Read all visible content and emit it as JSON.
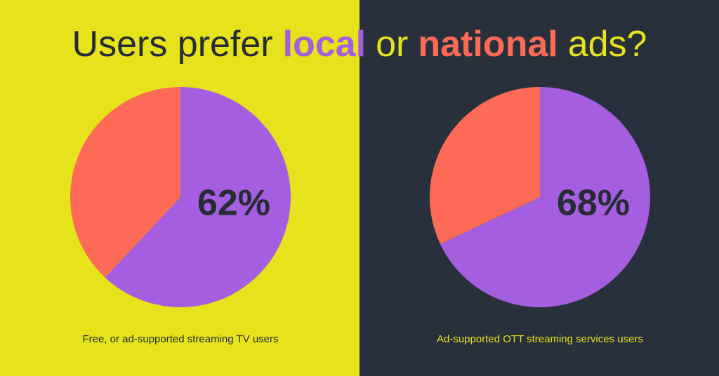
{
  "header": {
    "title_parts": [
      "Users prefer",
      "local",
      "or",
      "national",
      "ads?"
    ]
  },
  "chart_data": [
    {
      "type": "pie",
      "values": [
        62,
        38
      ],
      "value_labels": [
        "62%",
        null
      ],
      "colors": [
        "#a55ee0",
        "#fd6a55"
      ],
      "caption": "Free, or ad-supported streaming TV users"
    },
    {
      "type": "pie",
      "values": [
        68,
        32
      ],
      "value_labels": [
        "68%",
        null
      ],
      "colors": [
        "#a55ee0",
        "#fd6a55"
      ],
      "caption": "Ad-supported OTT streaming services users"
    }
  ]
}
